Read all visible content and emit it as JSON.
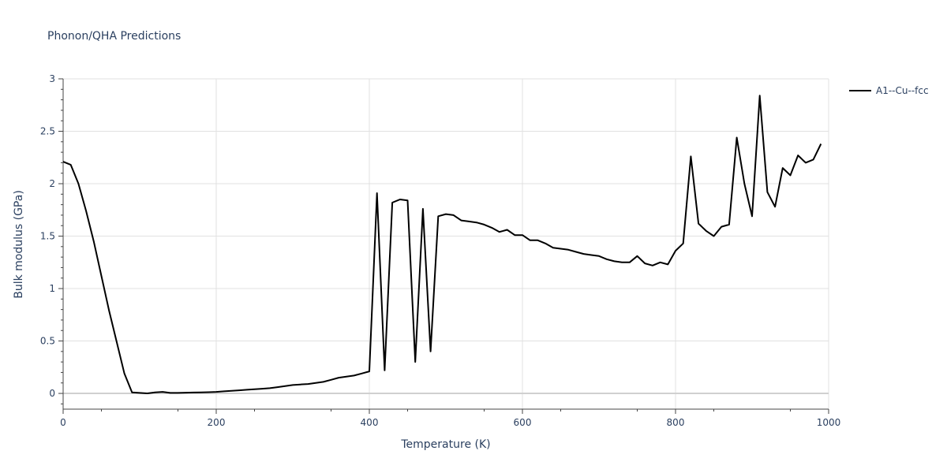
{
  "chart_data": {
    "type": "line",
    "title": "Phonon/QHA Predictions",
    "xlabel": "Temperature (K)",
    "ylabel": "Bulk modulus (GPa)",
    "xlim": [
      0,
      1000
    ],
    "ylim": [
      -0.15,
      3
    ],
    "x_ticks": [
      0,
      200,
      400,
      600,
      800,
      1000
    ],
    "x_tick_labels": [
      "0",
      "200",
      "400",
      "600",
      "800",
      "1000"
    ],
    "y_ticks": [
      0,
      0.5,
      1,
      1.5,
      2,
      2.5,
      3
    ],
    "y_tick_labels": [
      "0",
      "0.5",
      "1",
      "1.5",
      "2",
      "2.5",
      "3"
    ],
    "grid": true,
    "legend_position": "top-right",
    "series": [
      {
        "name": "A1--Cu--fcc",
        "color": "#000000",
        "x": [
          0,
          10,
          20,
          30,
          40,
          50,
          60,
          70,
          80,
          90,
          100,
          110,
          120,
          130,
          140,
          150,
          160,
          170,
          180,
          190,
          200,
          210,
          220,
          230,
          240,
          250,
          260,
          270,
          280,
          290,
          300,
          310,
          320,
          330,
          340,
          350,
          360,
          370,
          380,
          390,
          400,
          410,
          420,
          430,
          440,
          450,
          460,
          470,
          480,
          490,
          500,
          510,
          520,
          530,
          540,
          550,
          560,
          570,
          580,
          590,
          600,
          610,
          620,
          630,
          640,
          650,
          660,
          670,
          680,
          690,
          700,
          710,
          720,
          730,
          740,
          750,
          760,
          770,
          780,
          790,
          800,
          810,
          820,
          830,
          840,
          850,
          860,
          870,
          880,
          890,
          900,
          910,
          920,
          930,
          940,
          950,
          960,
          970,
          980,
          990
        ],
        "y": [
          2.21,
          2.18,
          2.0,
          1.74,
          1.45,
          1.12,
          0.79,
          0.49,
          0.19,
          0.01,
          0.005,
          0.0,
          0.01,
          0.015,
          0.005,
          0.005,
          0.007,
          0.009,
          0.01,
          0.012,
          0.015,
          0.02,
          0.025,
          0.03,
          0.035,
          0.04,
          0.045,
          0.05,
          0.06,
          0.07,
          0.08,
          0.085,
          0.09,
          0.1,
          0.11,
          0.13,
          0.15,
          0.16,
          0.17,
          0.19,
          0.21,
          1.91,
          0.22,
          1.82,
          1.85,
          1.84,
          0.3,
          1.76,
          0.4,
          1.69,
          1.71,
          1.7,
          1.65,
          1.64,
          1.63,
          1.61,
          1.58,
          1.54,
          1.56,
          1.51,
          1.51,
          1.46,
          1.46,
          1.43,
          1.39,
          1.38,
          1.37,
          1.35,
          1.33,
          1.32,
          1.31,
          1.28,
          1.26,
          1.25,
          1.25,
          1.31,
          1.24,
          1.22,
          1.25,
          1.23,
          1.36,
          1.43,
          2.26,
          1.62,
          1.55,
          1.5,
          1.59,
          1.61,
          2.44,
          2.0,
          1.69,
          2.84,
          1.92,
          1.78,
          2.15,
          2.08,
          2.27,
          2.2,
          2.23,
          2.38
        ]
      }
    ]
  }
}
